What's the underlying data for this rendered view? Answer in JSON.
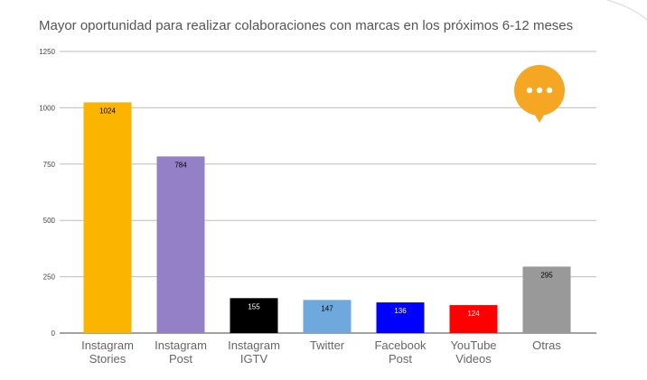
{
  "chart_data": {
    "type": "bar",
    "title": "Mayor oportunidad para realizar colaboraciones con marcas en los próximos 6-12 meses",
    "categories": [
      [
        "Instagram",
        "Stories"
      ],
      [
        "Instagram",
        "Post"
      ],
      [
        "Instagram",
        "IGTV"
      ],
      [
        "Twitter"
      ],
      [
        "Facebook",
        "Post"
      ],
      [
        "YouTube",
        "Videos"
      ],
      [
        "Otras"
      ]
    ],
    "values": [
      1024,
      784,
      155,
      147,
      136,
      124,
      295
    ],
    "data_labels": [
      "1024",
      "784",
      "155",
      "147",
      "136",
      "124",
      "295"
    ],
    "bar_colors": [
      "#FBB400",
      "#9480C6",
      "#000000",
      "#6FA8DC",
      "#0000FF",
      "#FF0000",
      "#999999"
    ],
    "label_colors": [
      "#000000",
      "#000000",
      "#ffffff",
      "#000000",
      "#ffffff",
      "#ffffff",
      "#000000"
    ],
    "ylim": [
      0,
      1250
    ],
    "yticks": [
      "0",
      "250",
      "500",
      "750",
      "1000",
      "1250"
    ],
    "grid": true,
    "xlabel": "",
    "ylabel": ""
  },
  "decoration": {
    "chat_bubble_icon": "chat-bubble-ellipsis-icon",
    "accent": "#F5A623"
  }
}
